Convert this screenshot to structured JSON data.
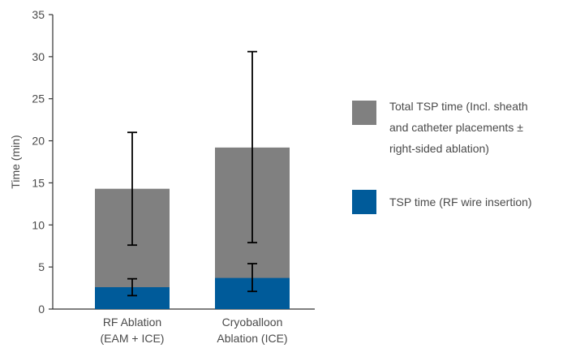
{
  "chart_data": {
    "type": "bar",
    "stacked": false,
    "overlay": true,
    "categories": [
      [
        "RF Ablation",
        "(EAM + ICE)"
      ],
      [
        "Cryoballoon",
        "Ablation (ICE)"
      ]
    ],
    "ylabel": "Time (min)",
    "xlabel": "",
    "ylim": [
      0,
      35
    ],
    "yticks": [
      0,
      5,
      10,
      15,
      20,
      25,
      30,
      35
    ],
    "grid": false,
    "legend_position": "right",
    "series": [
      {
        "name": [
          "Total TSP time (Incl. sheath",
          "and catheter placements ±",
          "right-sided ablation)"
        ],
        "color": "#808080",
        "values": [
          14.3,
          19.2
        ],
        "error_low": [
          7.6,
          7.9
        ],
        "error_high": [
          21.0,
          30.6
        ]
      },
      {
        "name": [
          "TSP time (RF wire insertion)"
        ],
        "color": "#005b9a",
        "values": [
          2.6,
          3.7
        ],
        "error_low": [
          1.6,
          2.1
        ],
        "error_high": [
          3.6,
          5.4
        ]
      }
    ]
  }
}
